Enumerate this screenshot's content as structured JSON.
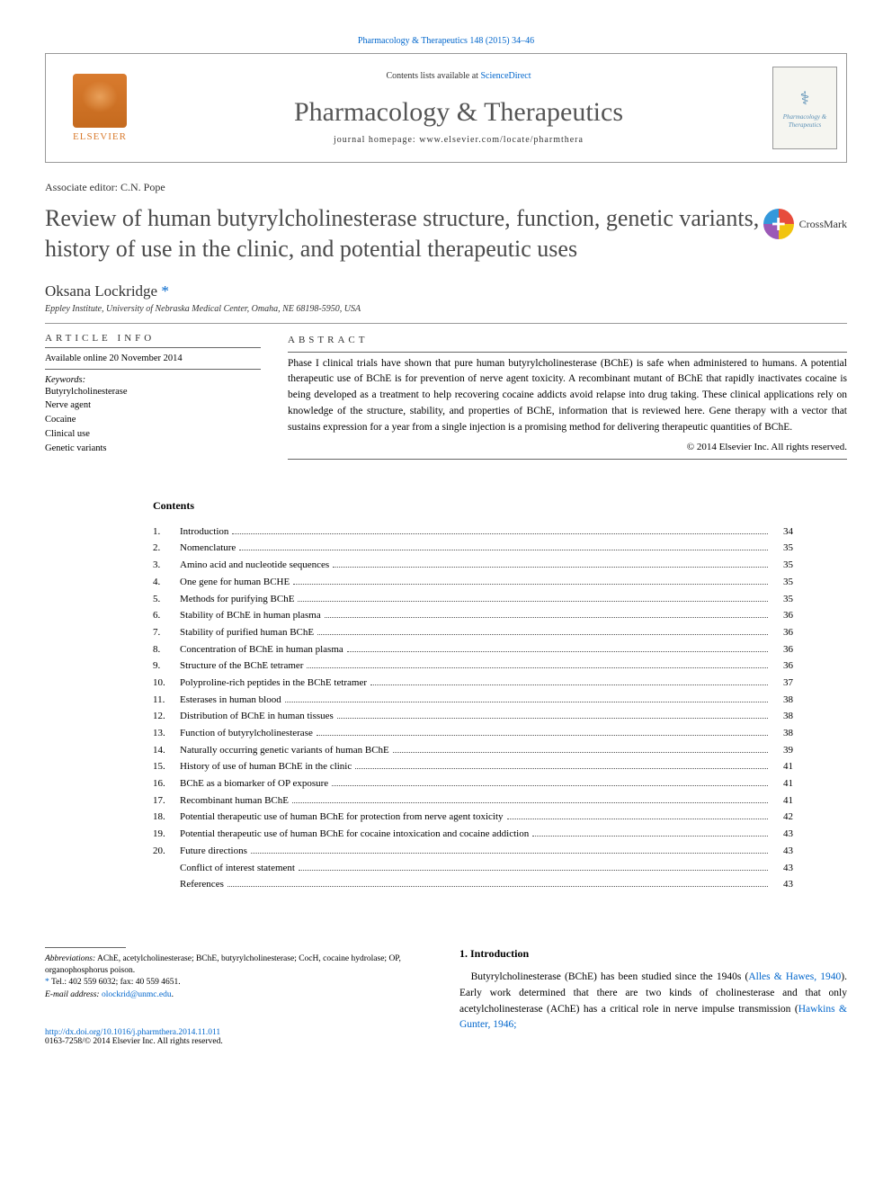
{
  "citation": "Pharmacology & Therapeutics 148 (2015) 34–46",
  "header": {
    "contents_line_prefix": "Contents lists available at ",
    "contents_line_link": "ScienceDirect",
    "journal_title": "Pharmacology & Therapeutics",
    "homepage_prefix": "journal homepage: ",
    "homepage": "www.elsevier.com/locate/pharmthera",
    "elsevier_text": "ELSEVIER",
    "cover_text": "Pharmacology\n&\nTherapeutics"
  },
  "associate_editor": "Associate editor: C.N. Pope",
  "title": "Review of human butyrylcholinesterase structure, function, genetic variants, history of use in the clinic, and potential therapeutic uses",
  "crossmark_label": "CrossMark",
  "author": {
    "name": "Oksana Lockridge",
    "star": "*"
  },
  "affiliation": "Eppley Institute, University of Nebraska Medical Center, Omaha, NE 68198-5950, USA",
  "article_info": {
    "header": "ARTICLE INFO",
    "available": "Available online 20 November 2014",
    "keywords_label": "Keywords:",
    "keywords": [
      "Butyrylcholinesterase",
      "Nerve agent",
      "Cocaine",
      "Clinical use",
      "Genetic variants"
    ]
  },
  "abstract": {
    "header": "ABSTRACT",
    "text": "Phase I clinical trials have shown that pure human butyrylcholinesterase (BChE) is safe when administered to humans. A potential therapeutic use of BChE is for prevention of nerve agent toxicity. A recombinant mutant of BChE that rapidly inactivates cocaine is being developed as a treatment to help recovering cocaine addicts avoid relapse into drug taking. These clinical applications rely on knowledge of the structure, stability, and properties of BChE, information that is reviewed here. Gene therapy with a vector that sustains expression for a year from a single injection is a promising method for delivering therapeutic quantities of BChE.",
    "copyright": "© 2014 Elsevier Inc. All rights reserved."
  },
  "contents": {
    "title": "Contents",
    "items": [
      {
        "n": "1.",
        "label": "Introduction",
        "page": "34"
      },
      {
        "n": "2.",
        "label": "Nomenclature",
        "page": "35"
      },
      {
        "n": "3.",
        "label": "Amino acid and nucleotide sequences",
        "page": "35"
      },
      {
        "n": "4.",
        "label": "One gene for human BCHE",
        "page": "35"
      },
      {
        "n": "5.",
        "label": "Methods for purifying BChE",
        "page": "35"
      },
      {
        "n": "6.",
        "label": "Stability of BChE in human plasma",
        "page": "36"
      },
      {
        "n": "7.",
        "label": "Stability of purified human BChE",
        "page": "36"
      },
      {
        "n": "8.",
        "label": "Concentration of BChE in human plasma",
        "page": "36"
      },
      {
        "n": "9.",
        "label": "Structure of the BChE tetramer",
        "page": "36"
      },
      {
        "n": "10.",
        "label": "Polyproline-rich peptides in the BChE tetramer",
        "page": "37"
      },
      {
        "n": "11.",
        "label": "Esterases in human blood",
        "page": "38"
      },
      {
        "n": "12.",
        "label": "Distribution of BChE in human tissues",
        "page": "38"
      },
      {
        "n": "13.",
        "label": "Function of butyrylcholinesterase",
        "page": "38"
      },
      {
        "n": "14.",
        "label": "Naturally occurring genetic variants of human BChE",
        "page": "39"
      },
      {
        "n": "15.",
        "label": "History of use of human BChE in the clinic",
        "page": "41"
      },
      {
        "n": "16.",
        "label": "BChE as a biomarker of OP exposure",
        "page": "41"
      },
      {
        "n": "17.",
        "label": "Recombinant human BChE",
        "page": "41"
      },
      {
        "n": "18.",
        "label": "Potential therapeutic use of human BChE for protection from nerve agent toxicity",
        "page": "42"
      },
      {
        "n": "19.",
        "label": "Potential therapeutic use of human BChE for cocaine intoxication and cocaine addiction",
        "page": "43"
      },
      {
        "n": "20.",
        "label": "Future directions",
        "page": "43"
      },
      {
        "n": "",
        "label": "Conflict of interest statement",
        "page": "43"
      },
      {
        "n": "",
        "label": "References",
        "page": "43"
      }
    ]
  },
  "footnotes": {
    "abbrev_label": "Abbreviations:",
    "abbrev_text": " AChE, acetylcholinesterase; BChE, butyrylcholinesterase; CocH, cocaine hydrolase; OP, organophosphorus poison.",
    "tel_star": "*",
    "tel_text": " Tel.: 402 559 6032; fax: 40 559 4651.",
    "email_label": "E-mail address: ",
    "email": "olockrid@unmc.edu",
    "email_suffix": "."
  },
  "introduction": {
    "heading": "1. Introduction",
    "text_pre": "Butyrylcholinesterase (BChE) has been studied since the 1940s (",
    "ref1": "Alles & Hawes, 1940",
    "text_mid": "). Early work determined that there are two kinds of cholinesterase and that only acetylcholinesterase (AChE) has a critical role in nerve impulse transmission (",
    "ref2": "Hawkins & Gunter, 1946;"
  },
  "doi": {
    "url": "http://dx.doi.org/10.1016/j.pharmthera.2014.11.011",
    "copyright": "0163-7258/© 2014 Elsevier Inc. All rights reserved."
  },
  "colors": {
    "link": "#0066cc",
    "elsevier": "#d97b2e",
    "text": "#333333"
  }
}
